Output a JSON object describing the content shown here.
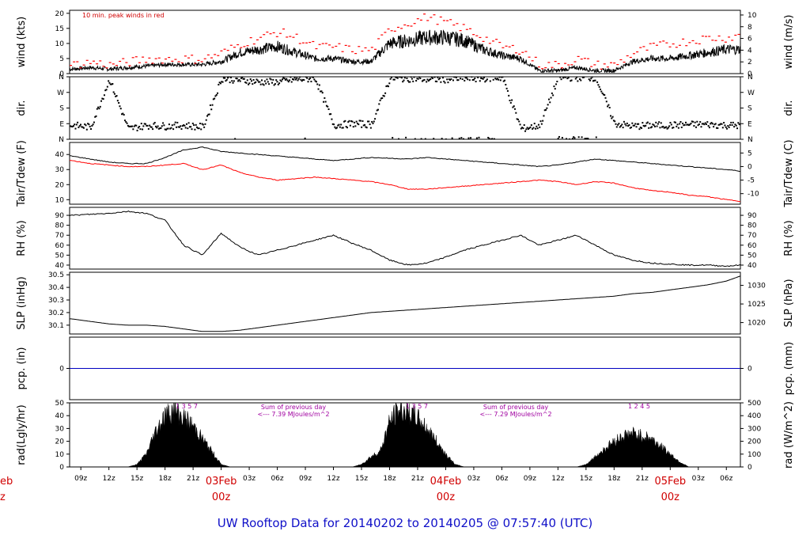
{
  "chart_data": {
    "type": "line",
    "title": "UW Rooftop Data for 20140202  to  20140205 @ 07:57:40  (UTC)",
    "x_axis": {
      "hour_ticks": [
        "09z",
        "12z",
        "15z",
        "18z",
        "21z",
        "00z",
        "03z",
        "06z",
        "09z",
        "12z",
        "15z",
        "18z",
        "21z",
        "00z",
        "03z",
        "06z",
        "09z",
        "12z",
        "15z",
        "18z",
        "21z",
        "00z",
        "03z",
        "06z"
      ],
      "date_markers": [
        {
          "date": "03Feb",
          "hour": "00z"
        },
        {
          "date": "04Feb",
          "hour": "00z"
        },
        {
          "date": "05Feb",
          "hour": "00z"
        }
      ],
      "left_edge_fragments": [
        "eb",
        "z"
      ],
      "time_range_hours": [
        -16.2,
        55.5
      ]
    },
    "panels": [
      {
        "id": "wind",
        "left_label": "wind (kts)",
        "right_label": "wind (m/s)",
        "left_ticks": [
          "0",
          "5",
          "10",
          "15",
          "20"
        ],
        "right_ticks": [
          "0",
          "2",
          "4",
          "6",
          "8",
          "10"
        ],
        "ylim": [
          0,
          21
        ],
        "annotation": "10 min. peak winds in red",
        "series": [
          {
            "name": "mean wind (kts)",
            "color": "#000000",
            "t": [
              -16,
              -14,
              -12,
              -10,
              -8,
              -6,
              -4,
              -2,
              0,
              2,
              4,
              6,
              8,
              10,
              12,
              14,
              16,
              18,
              20,
              22,
              24,
              26,
              28,
              30,
              32,
              34,
              36,
              38,
              40,
              42,
              44,
              46,
              48,
              50,
              52,
              54,
              55.5
            ],
            "v": [
              1.5,
              2,
              1.5,
              2,
              2.5,
              3,
              3,
              3,
              4,
              7,
              8,
              9,
              7,
              5,
              5,
              4,
              4,
              10,
              11,
              12,
              12,
              11,
              8,
              6,
              5,
              1,
              1,
              2,
              1,
              1,
              4,
              5,
              5,
              6,
              7,
              8,
              8
            ]
          },
          {
            "name": "10 min. peak wind (kts)",
            "color": "#ff0000",
            "t": [
              -16,
              -14,
              -12,
              -10,
              -8,
              -6,
              -4,
              -2,
              0,
              2,
              4,
              6,
              8,
              10,
              12,
              14,
              16,
              18,
              20,
              22,
              24,
              26,
              28,
              30,
              32,
              34,
              36,
              38,
              40,
              42,
              44,
              46,
              48,
              50,
              52,
              54,
              55.5
            ],
            "v": [
              3,
              4,
              3,
              4,
              5,
              5,
              5,
              5,
              7,
              10,
              12,
              14,
              12,
              9,
              9,
              8,
              8,
              15,
              17,
              19,
              17,
              15,
              12,
              9,
              8,
              3,
              3,
              5,
              3,
              3,
              7,
              9,
              10,
              11,
              12,
              12,
              13
            ]
          }
        ]
      },
      {
        "id": "dir",
        "left_label": "dir.",
        "right_label": "dir.",
        "left_ticks": [
          "N",
          "E",
          "S",
          "W",
          "N"
        ],
        "right_ticks": [
          "N",
          "E",
          "S",
          "W",
          "N"
        ],
        "ylim": [
          0,
          360
        ],
        "series": [
          {
            "name": "wind direction (deg)",
            "color": "#000000",
            "t": [
              -16,
              -14,
              -12,
              -10,
              -8,
              -6,
              -4,
              -2,
              0,
              2,
              4,
              6,
              8,
              10,
              12,
              14,
              16,
              18,
              20,
              22,
              24,
              26,
              28,
              30,
              32,
              34,
              36,
              38,
              40,
              42,
              44,
              46,
              48,
              50,
              52,
              54,
              55.5
            ],
            "v": [
              80,
              70,
              345,
              60,
              80,
              75,
              80,
              70,
              350,
              340,
              330,
              330,
              345,
              350,
              80,
              90,
              85,
              350,
              350,
              345,
              345,
              350,
              350,
              355,
              60,
              80,
              355,
              355,
              355,
              90,
              75,
              80,
              80,
              85,
              85,
              80,
              80
            ]
          }
        ]
      },
      {
        "id": "temp",
        "left_label": "Tair/Tdew (F)",
        "right_label": "Tair/Tdew (C)",
        "left_ticks": [
          "10",
          "20",
          "30",
          "40"
        ],
        "right_ticks": [
          "-10",
          "-5",
          "0",
          "5"
        ],
        "ylim": [
          7,
          48
        ],
        "series": [
          {
            "name": "Tair (F)",
            "color": "#000000",
            "t": [
              -16,
              -14,
              -12,
              -10,
              -8,
              -6,
              -4,
              -2,
              0,
              2,
              4,
              6,
              8,
              10,
              12,
              14,
              16,
              18,
              20,
              22,
              24,
              26,
              28,
              30,
              32,
              34,
              36,
              38,
              40,
              42,
              44,
              46,
              48,
              50,
              52,
              54,
              55.5
            ],
            "v": [
              39,
              37,
              35,
              34,
              34,
              38,
              43,
              45,
              42,
              41,
              40,
              39,
              38,
              37,
              36,
              37,
              38,
              37.5,
              37,
              38,
              37,
              36,
              35,
              34,
              33,
              32,
              33,
              35,
              37,
              36,
              35,
              34,
              33,
              32,
              31,
              30,
              29
            ]
          },
          {
            "name": "Tdew (F)",
            "color": "#ff0000",
            "t": [
              -16,
              -14,
              -12,
              -10,
              -8,
              -6,
              -4,
              -2,
              0,
              2,
              4,
              6,
              8,
              10,
              12,
              14,
              16,
              18,
              20,
              22,
              24,
              26,
              28,
              30,
              32,
              34,
              36,
              38,
              40,
              42,
              44,
              46,
              48,
              50,
              52,
              54,
              55.5
            ],
            "v": [
              36,
              34,
              33,
              32,
              32,
              33,
              34,
              30,
              33,
              28,
              25,
              23,
              24,
              25,
              24,
              23,
              22,
              20,
              17,
              17,
              18,
              19,
              20,
              21,
              22,
              23,
              22,
              20,
              22,
              21,
              18,
              16,
              15,
              13,
              12,
              10,
              9
            ]
          }
        ]
      },
      {
        "id": "rh",
        "left_label": "RH (%)",
        "right_label": "RH (%)",
        "left_ticks": [
          "40",
          "50",
          "60",
          "70",
          "80",
          "90"
        ],
        "right_ticks": [
          "40",
          "50",
          "60",
          "70",
          "80",
          "90"
        ],
        "ylim": [
          36,
          98
        ],
        "series": [
          {
            "name": "RH (%)",
            "color": "#000000",
            "t": [
              -16,
              -14,
              -12,
              -10,
              -8,
              -6,
              -4,
              -2,
              0,
              2,
              4,
              6,
              8,
              10,
              12,
              14,
              16,
              18,
              20,
              22,
              24,
              26,
              28,
              30,
              32,
              34,
              36,
              38,
              40,
              42,
              44,
              46,
              48,
              50,
              52,
              54,
              55.5
            ],
            "v": [
              90,
              91,
              92,
              94,
              92,
              85,
              60,
              50,
              72,
              58,
              50,
              55,
              60,
              65,
              70,
              62,
              55,
              45,
              40,
              42,
              48,
              55,
              60,
              65,
              70,
              60,
              65,
              70,
              60,
              50,
              45,
              42,
              41,
              40,
              40,
              39,
              40
            ]
          }
        ]
      },
      {
        "id": "slp",
        "left_label": "SLP (inHg)",
        "right_label": "SLP (hPa)",
        "left_ticks": [
          "30.1",
          "30.2",
          "30.3",
          "30.4",
          "30.5"
        ],
        "right_ticks": [
          "1020",
          "1025",
          "1030"
        ],
        "ylim": [
          30.03,
          30.52
        ],
        "series": [
          {
            "name": "SLP (inHg)",
            "color": "#000000",
            "t": [
              -16,
              -14,
              -12,
              -10,
              -8,
              -6,
              -4,
              -2,
              0,
              2,
              4,
              6,
              8,
              10,
              12,
              14,
              16,
              18,
              20,
              22,
              24,
              26,
              28,
              30,
              32,
              34,
              36,
              38,
              40,
              42,
              44,
              46,
              48,
              50,
              52,
              54,
              55.5
            ],
            "v": [
              30.15,
              30.13,
              30.11,
              30.1,
              30.1,
              30.09,
              30.07,
              30.05,
              30.05,
              30.06,
              30.08,
              30.1,
              30.12,
              30.14,
              30.16,
              30.18,
              30.2,
              30.21,
              30.22,
              30.23,
              30.24,
              30.25,
              30.26,
              30.27,
              30.28,
              30.29,
              30.3,
              30.31,
              30.32,
              30.33,
              30.35,
              30.36,
              30.38,
              30.4,
              30.42,
              30.45,
              30.49
            ]
          }
        ]
      },
      {
        "id": "pcp",
        "left_label": "pcp. (in)",
        "right_label": "pcp. (mm)",
        "left_ticks": [
          "0"
        ],
        "right_ticks": [
          "0"
        ],
        "ylim": [
          -1,
          1
        ],
        "series": [
          {
            "name": "precipitation (in)",
            "color": "#0000c0",
            "t": [
              -16.2,
              55.5
            ],
            "v": [
              0,
              0
            ]
          }
        ]
      },
      {
        "id": "rad",
        "left_label": "rad(Lgly/hr)",
        "right_label": "rad (W/m^2)",
        "left_ticks": [
          "0",
          "10",
          "20",
          "30",
          "40",
          "50"
        ],
        "right_ticks": [
          "0",
          "100",
          "200",
          "300",
          "400",
          "500"
        ],
        "ylim": [
          0,
          50
        ],
        "series": [
          {
            "name": "solar radiation (Lgly/hr)",
            "color": "#000000",
            "t": [
              -16.2,
              -10,
              -9,
              -8,
              -7,
              -6,
              -5,
              -4,
              -3,
              -2,
              -1,
              0,
              1,
              2,
              14,
              15,
              16,
              17,
              18,
              19,
              20,
              21,
              22,
              23,
              24,
              25,
              26,
              38,
              39,
              40,
              41,
              42,
              43,
              44,
              45,
              46,
              47,
              48,
              49,
              50,
              55.5
            ],
            "v": [
              0,
              0,
              2,
              10,
              28,
              40,
              44,
              38,
              32,
              22,
              12,
              2,
              0,
              0,
              0,
              2,
              8,
              12,
              35,
              45,
              42,
              38,
              30,
              20,
              10,
              2,
              0,
              0,
              2,
              8,
              14,
              20,
              24,
              26,
              24,
              22,
              16,
              10,
              4,
              0,
              0
            ]
          }
        ],
        "annotations": [
          {
            "text": "1   3   5   7",
            "color": "#a000a0"
          },
          {
            "text": "Sum of previous day",
            "color": "#a000a0"
          },
          {
            "text": "<--- 7.39 MJoules/m^2",
            "color": "#a000a0"
          },
          {
            "text": "1   3   5   7",
            "color": "#a000a0"
          },
          {
            "text": "Sum of previous day",
            "color": "#a000a0"
          },
          {
            "text": "<--- 7.29 MJoules/m^2",
            "color": "#a000a0"
          },
          {
            "text": "1  2   4   5",
            "color": "#a000a0"
          }
        ]
      }
    ]
  }
}
